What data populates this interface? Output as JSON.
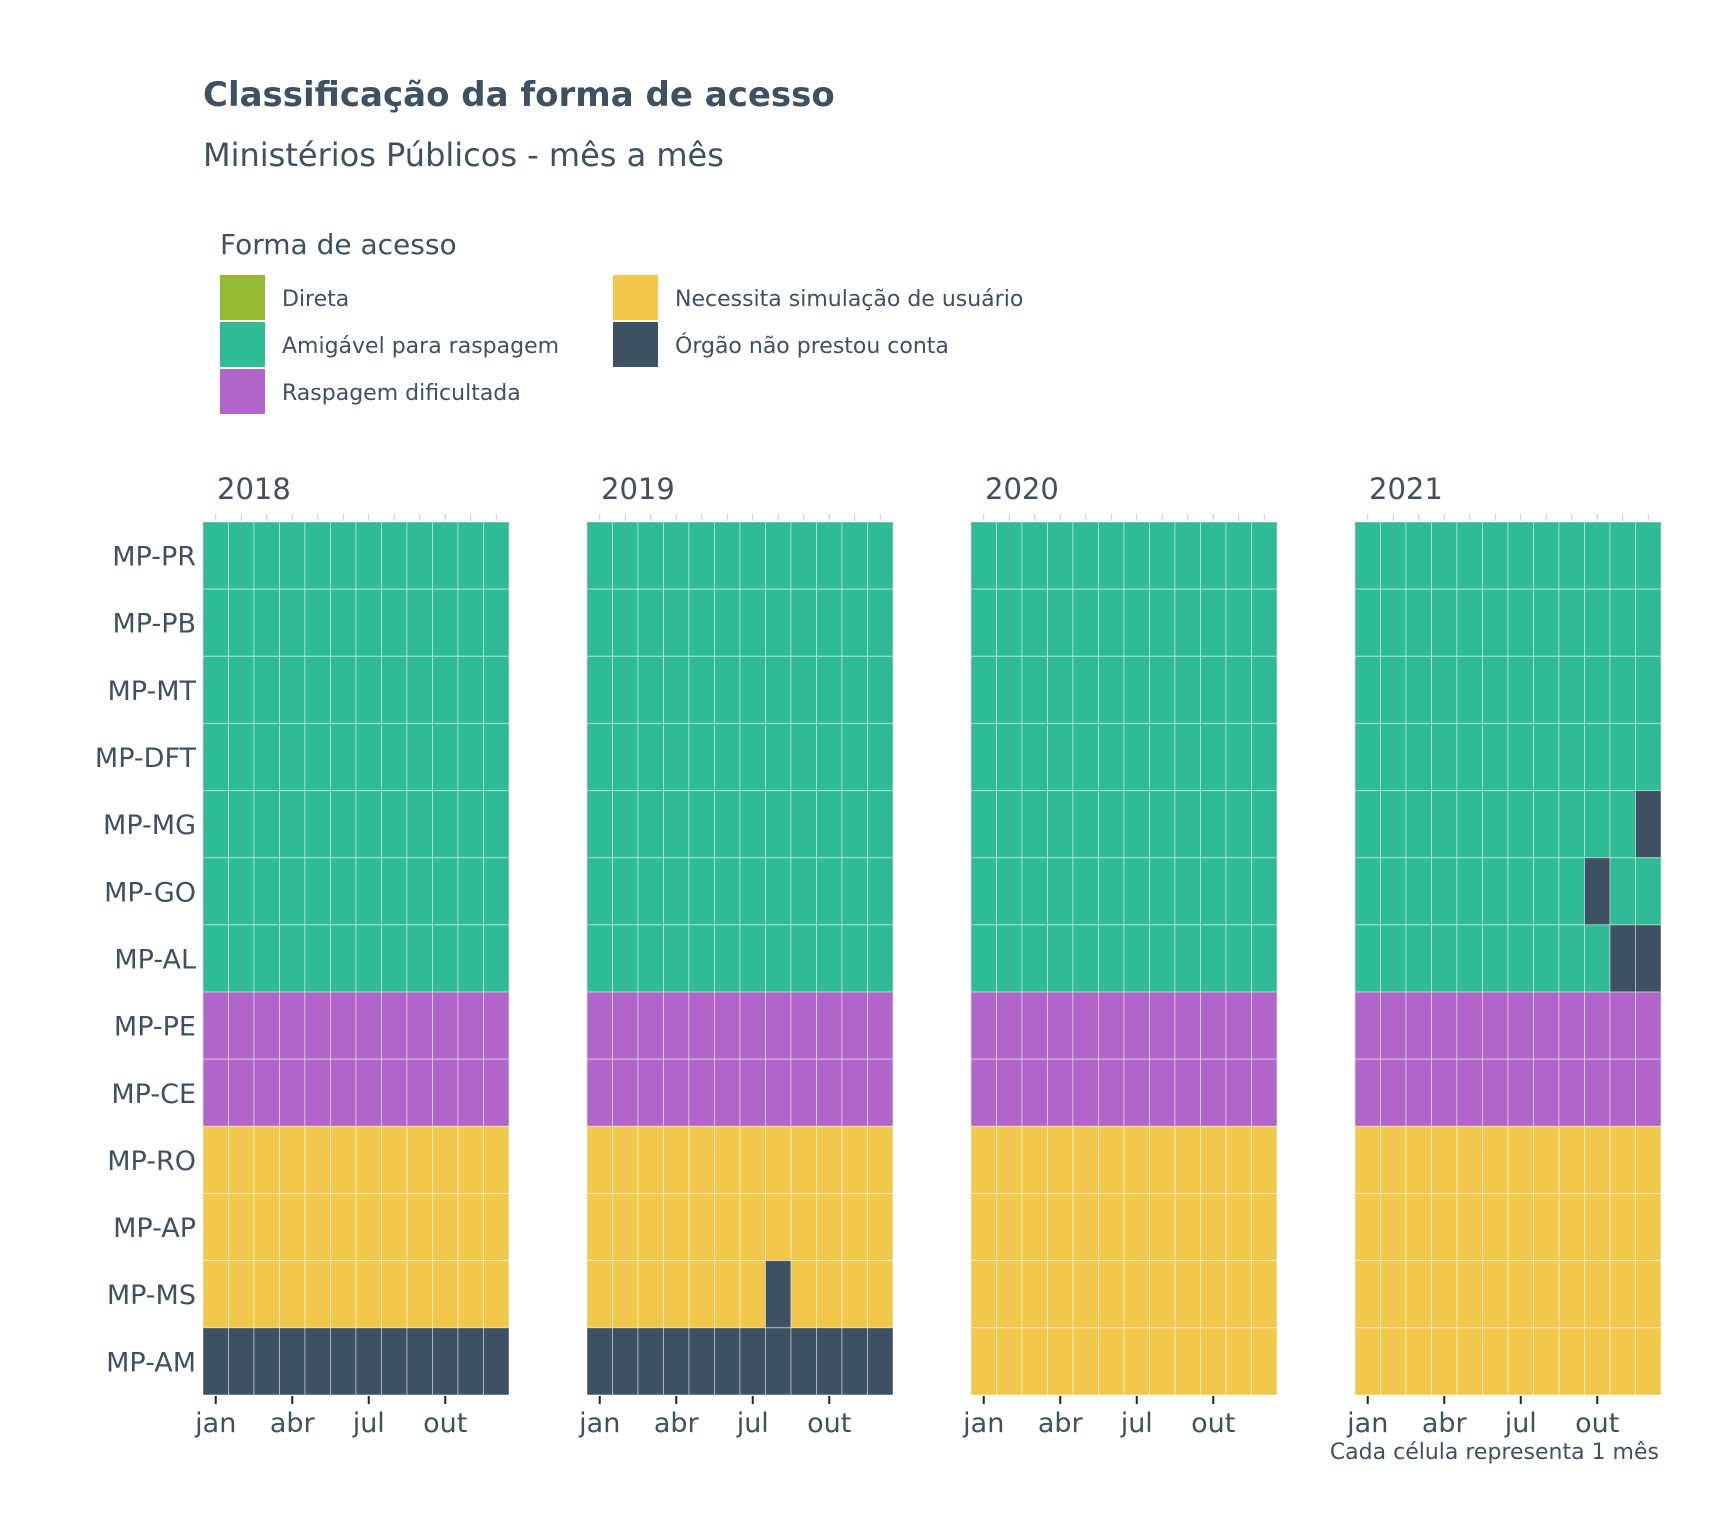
{
  "chart_data": {
    "type": "heatmap",
    "title": "Classificação da forma de acesso",
    "subtitle": "Ministérios Públicos - mês a mês",
    "caption": "Cada célula representa 1 mês",
    "legend": {
      "title": "Forma de acesso",
      "placement": "top-left",
      "items": [
        {
          "key": "D",
          "label": "Direta",
          "color": "#95b932"
        },
        {
          "key": "A",
          "label": "Amigável para raspagem",
          "color": "#2ebb95"
        },
        {
          "key": "R",
          "label": "Raspagem dificultada",
          "color": "#b265c8"
        },
        {
          "key": "S",
          "label": "Necessita simulação de usuário",
          "color": "#f2c84c"
        },
        {
          "key": "N",
          "label": "Órgão não prestou conta",
          "color": "#3d5162"
        }
      ]
    },
    "rows": [
      "MP-PR",
      "MP-PB",
      "MP-MT",
      "MP-DFT",
      "MP-MG",
      "MP-GO",
      "MP-AL",
      "MP-PE",
      "MP-CE",
      "MP-RO",
      "MP-AP",
      "MP-MS",
      "MP-AM"
    ],
    "x_tick_labels": [
      "jan",
      "abr",
      "jul",
      "out"
    ],
    "x_tick_months": [
      1,
      4,
      7,
      10
    ],
    "facets": [
      {
        "year": "2018",
        "cells": {
          "MP-PR": "AAAAAAAAAAAA",
          "MP-PB": "AAAAAAAAAAAA",
          "MP-MT": "AAAAAAAAAAAA",
          "MP-DFT": "AAAAAAAAAAAA",
          "MP-MG": "AAAAAAAAAAAA",
          "MP-GO": "AAAAAAAAAAAA",
          "MP-AL": "AAAAAAAAAAAA",
          "MP-PE": "RRRRRRRRRRRR",
          "MP-CE": "RRRRRRRRRRRR",
          "MP-RO": "SSSSSSSSSSSS",
          "MP-AP": "SSSSSSSSSSSS",
          "MP-MS": "SSSSSSSSSSSS",
          "MP-AM": "NNNNNNNNNNNN"
        }
      },
      {
        "year": "2019",
        "cells": {
          "MP-PR": "AAAAAAAAAAAA",
          "MP-PB": "AAAAAAAAAAAA",
          "MP-MT": "AAAAAAAAAAAA",
          "MP-DFT": "AAAAAAAAAAAA",
          "MP-MG": "AAAAAAAAAAAA",
          "MP-GO": "AAAAAAAAAAAA",
          "MP-AL": "AAAAAAAAAAAA",
          "MP-PE": "RRRRRRRRRRRR",
          "MP-CE": "RRRRRRRRRRRR",
          "MP-RO": "SSSSSSSSSSSS",
          "MP-AP": "SSSSSSSSSSSS",
          "MP-MS": "SSSSSSSNSSSS",
          "MP-AM": "NNNNNNNNNNNN"
        }
      },
      {
        "year": "2020",
        "cells": {
          "MP-PR": "AAAAAAAAAAAA",
          "MP-PB": "AAAAAAAAAAAA",
          "MP-MT": "AAAAAAAAAAAA",
          "MP-DFT": "AAAAAAAAAAAA",
          "MP-MG": "AAAAAAAAAAAA",
          "MP-GO": "AAAAAAAAAAAA",
          "MP-AL": "AAAAAAAAAAAA",
          "MP-PE": "RRRRRRRRRRRR",
          "MP-CE": "RRRRRRRRRRRR",
          "MP-RO": "SSSSSSSSSSSS",
          "MP-AP": "SSSSSSSSSSSS",
          "MP-MS": "SSSSSSSSSSSS",
          "MP-AM": "SSSSSSSSSSSS"
        }
      },
      {
        "year": "2021",
        "cells": {
          "MP-PR": "AAAAAAAAAAAA",
          "MP-PB": "AAAAAAAAAAAA",
          "MP-MT": "AAAAAAAAAAAA",
          "MP-DFT": "AAAAAAAAAAAA",
          "MP-MG": "AAAAAAAAAAAN",
          "MP-GO": "AAAAAAAAANAA",
          "MP-AL": "AAAAAAAAAANN",
          "MP-PE": "RRRRRRRRRRRR",
          "MP-CE": "RRRRRRRRRRRR",
          "MP-RO": "SSSSSSSSSSSS",
          "MP-AP": "SSSSSSSSSSSS",
          "MP-MS": "SSSSSSSSSSSS",
          "MP-AM": "SSSSSSSSSSSS"
        }
      }
    ]
  }
}
